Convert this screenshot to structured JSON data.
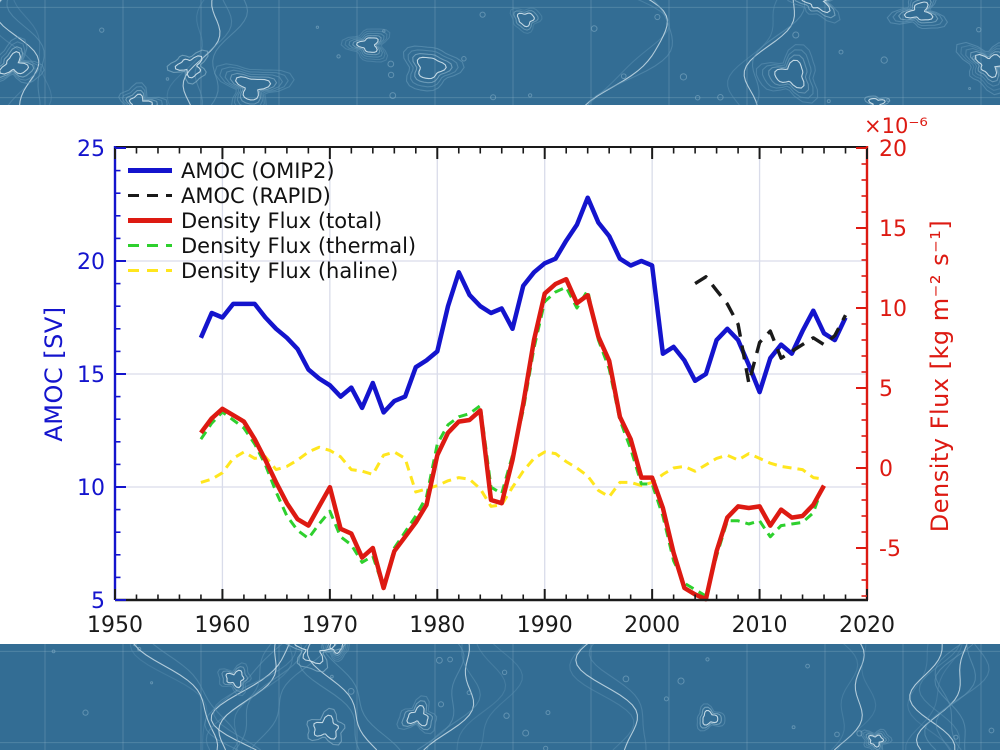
{
  "figure": {
    "background": "#ffffff",
    "band": {
      "bg": "#336d94",
      "contour_faint": "#5f93b3",
      "contour_mid": "#8fb7cd",
      "contour_bright": "#dcebf2",
      "graticule": "#bcd6e4"
    }
  },
  "chart_data": {
    "type": "line",
    "title": "",
    "xlabel": "",
    "grid": true,
    "grid_color": "#d9dcea",
    "legend_position": "top-left",
    "x_range": [
      1950,
      2020
    ],
    "xticks": [
      1950,
      1960,
      1970,
      1980,
      1990,
      2000,
      2010,
      2020
    ],
    "x_minor_step": 2,
    "left_axis": {
      "label": "AMOC [SV]",
      "color": "#1414cd",
      "range": [
        5,
        25
      ],
      "ticks": [
        5,
        10,
        15,
        20,
        25
      ],
      "minor_step": 1
    },
    "right_axis": {
      "label": "Density Flux [kg m⁻² s⁻¹]",
      "multiplier": "×10⁻⁶",
      "color": "#dd1a12",
      "range": [
        -8.25,
        20
      ],
      "ticks": [
        -5,
        0,
        5,
        10,
        15,
        20
      ],
      "minor_step": 1
    },
    "series": [
      {
        "name": "AMOC (OMIP2)",
        "axis": "left",
        "color": "#1414cd",
        "style": "solid",
        "width": 4.5,
        "dash": "",
        "x_start": 1958,
        "x_step": 1,
        "values": [
          16.6,
          17.7,
          17.5,
          18.1,
          18.1,
          18.1,
          17.5,
          17.0,
          16.6,
          16.1,
          15.2,
          14.8,
          14.5,
          14.0,
          14.4,
          13.5,
          14.6,
          13.3,
          13.8,
          14.0,
          15.3,
          15.6,
          16.0,
          18.0,
          19.5,
          18.5,
          18.0,
          17.7,
          17.9,
          17.0,
          18.9,
          19.5,
          19.9,
          20.1,
          20.9,
          21.6,
          22.8,
          21.7,
          21.1,
          20.1,
          19.8,
          20.0,
          19.8,
          15.9,
          16.2,
          15.6,
          14.7,
          15.0,
          16.5,
          17.0,
          16.5,
          15.4,
          14.2,
          15.7,
          16.3,
          15.9,
          16.9,
          17.8,
          16.8,
          16.5,
          17.5
        ]
      },
      {
        "name": "AMOC (RAPID)",
        "axis": "left",
        "color": "#1a1a1a",
        "style": "dashed",
        "width": 3.4,
        "dash": "14 9",
        "x_start": 2004,
        "x_step": 1,
        "values": [
          19.0,
          19.3,
          18.7,
          18.1,
          17.2,
          14.6,
          16.4,
          16.9,
          15.7,
          16.0,
          16.3,
          16.6,
          16.3,
          16.7,
          17.6
        ]
      },
      {
        "name": "Density Flux (total)",
        "axis": "right",
        "color": "#dd1a12",
        "style": "solid",
        "width": 4.5,
        "dash": "",
        "x_start": 1958,
        "x_step": 1,
        "values": [
          2.2,
          3.1,
          3.7,
          3.3,
          2.9,
          1.8,
          0.5,
          -0.9,
          -2.2,
          -3.2,
          -3.6,
          -2.4,
          -1.2,
          -3.8,
          -4.1,
          -5.6,
          -5.0,
          -7.5,
          -5.2,
          -4.3,
          -3.4,
          -2.3,
          0.8,
          2.2,
          2.9,
          3.0,
          3.6,
          -2.0,
          -2.2,
          0.5,
          4.0,
          8.0,
          10.9,
          11.5,
          11.8,
          10.3,
          10.8,
          8.2,
          6.7,
          3.2,
          1.8,
          -0.6,
          -0.6,
          -2.5,
          -5.3,
          -7.5,
          -7.9,
          -8.2,
          -5.2,
          -3.1,
          -2.4,
          -2.5,
          -2.4,
          -3.6,
          -2.6,
          -3.1,
          -3.0,
          -2.3,
          -1.1
        ]
      },
      {
        "name": "Density Flux (thermal)",
        "axis": "right",
        "color": "#2ed02e",
        "style": "dashed",
        "width": 3,
        "dash": "9 6",
        "x_start": 1958,
        "x_step": 1,
        "values": [
          1.8,
          2.8,
          3.5,
          3.0,
          2.5,
          1.5,
          0.2,
          -1.5,
          -3.0,
          -3.9,
          -4.4,
          -3.5,
          -2.7,
          -4.3,
          -4.8,
          -5.9,
          -5.5,
          -7.5,
          -5.0,
          -4.0,
          -3.0,
          -1.8,
          1.5,
          2.7,
          3.2,
          3.4,
          3.9,
          -1.2,
          -1.6,
          0.8,
          3.6,
          7.5,
          10.4,
          11.0,
          11.3,
          10.0,
          11.1,
          8.0,
          6.2,
          3.0,
          1.2,
          -1.0,
          -1.0,
          -3.0,
          -5.8,
          -7.2,
          -7.6,
          -8.0,
          -5.5,
          -3.3,
          -3.3,
          -3.5,
          -3.3,
          -4.3,
          -3.6,
          -3.5,
          -3.4,
          -2.8,
          -0.9
        ]
      },
      {
        "name": "Density Flux (haline)",
        "axis": "right",
        "color": "#ffe61e",
        "style": "dashed",
        "width": 3,
        "dash": "9 6",
        "x_start": 1958,
        "x_step": 1,
        "values": [
          -0.9,
          -0.7,
          -0.3,
          0.6,
          1.0,
          0.6,
          0.7,
          -0.1,
          0.1,
          0.5,
          1.0,
          1.3,
          1.1,
          0.7,
          -0.1,
          -0.2,
          -0.4,
          0.8,
          1.0,
          0.6,
          -1.5,
          -1.3,
          -1.1,
          -0.8,
          -0.6,
          -0.7,
          -1.3,
          -2.4,
          -2.3,
          -1.2,
          -0.2,
          0.6,
          1.0,
          0.9,
          0.4,
          0.0,
          -0.5,
          -1.4,
          -1.8,
          -0.9,
          -0.9,
          -1.1,
          -0.9,
          -0.4,
          0.0,
          0.1,
          -0.2,
          0.2,
          0.6,
          0.8,
          0.5,
          0.9,
          0.6,
          0.3,
          0.1,
          0.0,
          -0.1,
          -0.6,
          -0.7
        ]
      }
    ]
  }
}
